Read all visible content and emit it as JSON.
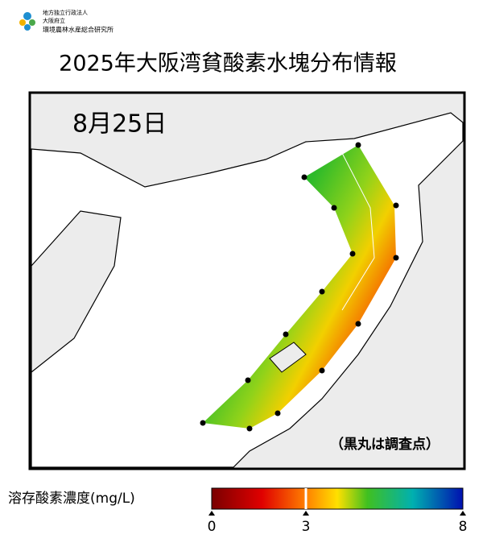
{
  "header": {
    "org": [
      "地方独立行政法人",
      "大阪府立",
      "環境農林水産総合研究所"
    ]
  },
  "title": "2025年大阪湾貧酸素水塊分布情報",
  "map": {
    "date": "8月25日",
    "note": "（黒丸は調査点）"
  },
  "colorbar": {
    "label": "溶存酸素濃度(mg/L)",
    "range": [
      0,
      8
    ],
    "ticks": [
      0,
      3,
      8
    ]
  }
}
